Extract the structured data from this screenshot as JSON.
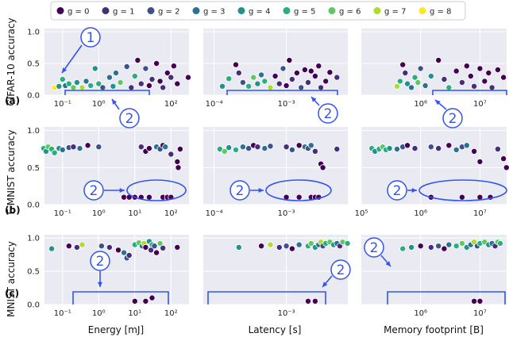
{
  "legend": {
    "entries": [
      {
        "label": "g = 0",
        "color": "#440154"
      },
      {
        "label": "g = 1",
        "color": "#472d7b"
      },
      {
        "label": "g = 2",
        "color": "#3b528b"
      },
      {
        "label": "g = 3",
        "color": "#2c728e"
      },
      {
        "label": "g = 4",
        "color": "#21918c"
      },
      {
        "label": "g = 5",
        "color": "#28ae80"
      },
      {
        "label": "g = 6",
        "color": "#5ec962"
      },
      {
        "label": "g = 7",
        "color": "#addc30"
      },
      {
        "label": "g = 8",
        "color": "#fde725"
      }
    ]
  },
  "rows": [
    {
      "ylabel": "CIFAR-10 accuracy",
      "tag": "(a)",
      "yticks": [
        "1.0",
        "0.5",
        "0.0"
      ]
    },
    {
      "ylabel": "F-MNIST accuracy",
      "tag": "(b)",
      "yticks": [
        "1.0",
        "0.5",
        "0.0"
      ]
    },
    {
      "ylabel": "MNIST accuracy",
      "tag": "(c)",
      "yticks": [
        "1.0",
        "0.5",
        "0.0"
      ]
    }
  ],
  "columns": [
    {
      "xlabel": "Energy [mJ]"
    },
    {
      "xlabel": "Latency [s]"
    },
    {
      "xlabel": "Memory footprint [B]"
    }
  ],
  "xticks": [
    [
      [
        "10⁻¹",
        "10⁰",
        "10²"
      ],
      [
        "10⁻¹",
        "10⁰",
        "10²"
      ],
      [
        "10⁻¹",
        "10⁰",
        "10¹",
        "10²"
      ],
      [
        "10⁻¹",
        "10⁰",
        "10¹",
        "10²"
      ]
    ],
    [
      [
        "10⁻⁴",
        "10⁻³"
      ],
      [
        "10⁻⁴",
        "10⁻³"
      ],
      [
        "10⁻³"
      ]
    ],
    [
      [
        "10⁶",
        "10⁷"
      ],
      [
        "10⁵",
        "10⁶",
        "10⁷"
      ],
      [
        "10⁶",
        "10⁷"
      ]
    ]
  ],
  "callouts": [
    "1",
    "2",
    "2",
    "2",
    "2",
    "2",
    "2",
    "2",
    "2",
    "2"
  ],
  "chart_data": [
    {
      "type": "scatter",
      "row": "CIFAR-10",
      "col": "Energy",
      "ylim": [
        0,
        1
      ],
      "points": [
        [
          0.06,
          0.12,
          8
        ],
        [
          0.08,
          0.14,
          4
        ],
        [
          0.1,
          0.25,
          5
        ],
        [
          0.12,
          0.15,
          3
        ],
        [
          0.15,
          0.18,
          5
        ],
        [
          0.2,
          0.12,
          6
        ],
        [
          0.25,
          0.2,
          4
        ],
        [
          0.35,
          0.12,
          7
        ],
        [
          0.45,
          0.22,
          3
        ],
        [
          0.6,
          0.15,
          5
        ],
        [
          0.8,
          0.42,
          4
        ],
        [
          1.0,
          0.18,
          5
        ],
        [
          1.3,
          0.12,
          2
        ],
        [
          2,
          0.28,
          3
        ],
        [
          2.5,
          0.14,
          4
        ],
        [
          3,
          0.35,
          3
        ],
        [
          4,
          0.2,
          6
        ],
        [
          6,
          0.45,
          2
        ],
        [
          8,
          0.12,
          1
        ],
        [
          10,
          0.3,
          5
        ],
        [
          12,
          0.55,
          0
        ],
        [
          15,
          0.18,
          1
        ],
        [
          20,
          0.42,
          2
        ],
        [
          25,
          0.15,
          0
        ],
        [
          30,
          0.25,
          1
        ],
        [
          40,
          0.5,
          0
        ],
        [
          50,
          0.22,
          0
        ],
        [
          60,
          0.12,
          1
        ],
        [
          80,
          0.35,
          0
        ],
        [
          100,
          0.28,
          1
        ],
        [
          120,
          0.46,
          0
        ],
        [
          150,
          0.18,
          0
        ],
        [
          300,
          0.28,
          0
        ]
      ]
    },
    {
      "type": "scatter",
      "row": "CIFAR-10",
      "col": "Latency",
      "ylim": [
        0,
        1
      ],
      "points": [
        [
          0.00013,
          0.14,
          4
        ],
        [
          0.00016,
          0.26,
          5
        ],
        [
          0.0002,
          0.48,
          0
        ],
        [
          0.00022,
          0.35,
          1
        ],
        [
          0.00025,
          0.2,
          2
        ],
        [
          0.0003,
          0.14,
          5
        ],
        [
          0.00035,
          0.28,
          6
        ],
        [
          0.0004,
          0.18,
          4
        ],
        [
          0.00045,
          0.32,
          3
        ],
        [
          0.0005,
          0.22,
          5
        ],
        [
          0.0006,
          0.12,
          7
        ],
        [
          0.0007,
          0.3,
          0
        ],
        [
          0.0008,
          0.18,
          1
        ],
        [
          0.0009,
          0.42,
          2
        ],
        [
          0.001,
          0.15,
          0
        ],
        [
          0.0011,
          0.55,
          0
        ],
        [
          0.0012,
          0.25,
          1
        ],
        [
          0.0014,
          0.35,
          0
        ],
        [
          0.0016,
          0.12,
          2
        ],
        [
          0.0018,
          0.4,
          0
        ],
        [
          0.002,
          0.2,
          1
        ],
        [
          0.0022,
          0.38,
          0
        ],
        [
          0.0025,
          0.3,
          0
        ],
        [
          0.0028,
          0.46,
          0
        ],
        [
          0.003,
          0.12,
          1
        ],
        [
          0.0035,
          0.22,
          0
        ],
        [
          0.004,
          0.36,
          0
        ],
        [
          0.005,
          0.28,
          1
        ]
      ]
    },
    {
      "type": "scatter",
      "row": "CIFAR-10",
      "col": "Memory",
      "ylim": [
        0,
        1
      ],
      "points": [
        [
          400000,
          0.14,
          7
        ],
        [
          450000,
          0.22,
          5
        ],
        [
          500000,
          0.48,
          0
        ],
        [
          550000,
          0.35,
          1
        ],
        [
          600000,
          0.18,
          4
        ],
        [
          700000,
          0.12,
          3
        ],
        [
          800000,
          0.28,
          5
        ],
        [
          900000,
          0.2,
          6
        ],
        [
          1000000,
          0.42,
          2
        ],
        [
          1200000,
          0.15,
          3
        ],
        [
          1500000,
          0.3,
          4
        ],
        [
          2000000,
          0.55,
          0
        ],
        [
          2500000,
          0.25,
          1
        ],
        [
          3000000,
          0.12,
          5
        ],
        [
          4000000,
          0.38,
          0
        ],
        [
          5000000,
          0.2,
          1
        ],
        [
          6000000,
          0.46,
          0
        ],
        [
          7000000,
          0.3,
          0
        ],
        [
          8000000,
          0.14,
          1
        ],
        [
          10000000,
          0.42,
          0
        ],
        [
          12000000,
          0.22,
          0
        ],
        [
          14000000,
          0.35,
          0
        ],
        [
          16000000,
          0.12,
          1
        ],
        [
          20000000,
          0.4,
          0
        ],
        [
          25000000,
          0.28,
          0
        ]
      ]
    },
    {
      "type": "scatter",
      "row": "F-MNIST",
      "col": "Energy",
      "ylim": [
        0,
        1
      ],
      "points": [
        [
          0.03,
          0.76,
          5
        ],
        [
          0.035,
          0.72,
          4
        ],
        [
          0.04,
          0.78,
          6
        ],
        [
          0.05,
          0.75,
          5
        ],
        [
          0.06,
          0.7,
          5
        ],
        [
          0.08,
          0.76,
          4
        ],
        [
          0.1,
          0.74,
          3
        ],
        [
          0.15,
          0.77,
          2
        ],
        [
          0.2,
          0.78,
          1
        ],
        [
          0.3,
          0.76,
          3
        ],
        [
          0.5,
          0.8,
          0
        ],
        [
          1.0,
          0.78,
          2
        ],
        [
          15,
          0.78,
          1
        ],
        [
          20,
          0.72,
          0
        ],
        [
          25,
          0.76,
          0
        ],
        [
          40,
          0.78,
          3
        ],
        [
          50,
          0.75,
          2
        ],
        [
          60,
          0.8,
          0
        ],
        [
          70,
          0.78,
          3
        ],
        [
          100,
          0.68,
          1
        ],
        [
          150,
          0.58,
          0
        ],
        [
          160,
          0.5,
          0
        ],
        [
          180,
          0.75,
          0
        ],
        [
          5,
          0.1,
          0
        ],
        [
          7,
          0.1,
          0
        ],
        [
          10,
          0.1,
          0
        ],
        [
          15,
          0.1,
          0
        ],
        [
          25,
          0.1,
          0
        ],
        [
          60,
          0.1,
          0
        ],
        [
          80,
          0.1,
          0
        ],
        [
          100,
          0.1,
          0
        ]
      ]
    },
    {
      "type": "scatter",
      "row": "F-MNIST",
      "col": "Latency",
      "ylim": [
        0,
        1
      ],
      "points": [
        [
          0.00012,
          0.75,
          5
        ],
        [
          0.00014,
          0.72,
          6
        ],
        [
          0.00016,
          0.77,
          4
        ],
        [
          0.0002,
          0.74,
          5
        ],
        [
          0.00025,
          0.78,
          3
        ],
        [
          0.0003,
          0.76,
          2
        ],
        [
          0.00035,
          0.8,
          0
        ],
        [
          0.0004,
          0.78,
          1
        ],
        [
          0.0005,
          0.76,
          3
        ],
        [
          0.0006,
          0.79,
          2
        ],
        [
          0.001,
          0.78,
          1
        ],
        [
          0.0012,
          0.74,
          2
        ],
        [
          0.0015,
          0.8,
          0
        ],
        [
          0.0018,
          0.78,
          3
        ],
        [
          0.002,
          0.76,
          2
        ],
        [
          0.0022,
          0.8,
          3
        ],
        [
          0.0025,
          0.72,
          1
        ],
        [
          0.003,
          0.55,
          0
        ],
        [
          0.0032,
          0.5,
          0
        ],
        [
          0.005,
          0.75,
          1
        ],
        [
          0.001,
          0.1,
          0
        ],
        [
          0.0015,
          0.1,
          0
        ],
        [
          0.0022,
          0.1,
          0
        ],
        [
          0.0025,
          0.1,
          0
        ],
        [
          0.0028,
          0.1,
          0
        ]
      ]
    },
    {
      "type": "scatter",
      "row": "F-MNIST",
      "col": "Memory",
      "ylim": [
        0,
        1
      ],
      "points": [
        [
          150000,
          0.76,
          5
        ],
        [
          170000,
          0.72,
          4
        ],
        [
          200000,
          0.75,
          5
        ],
        [
          230000,
          0.78,
          6
        ],
        [
          260000,
          0.74,
          5
        ],
        [
          300000,
          0.76,
          4
        ],
        [
          400000,
          0.75,
          3
        ],
        [
          500000,
          0.78,
          2
        ],
        [
          600000,
          0.8,
          0
        ],
        [
          800000,
          0.76,
          1
        ],
        [
          1500000,
          0.78,
          2
        ],
        [
          2000000,
          0.76,
          1
        ],
        [
          3000000,
          0.8,
          0
        ],
        [
          4000000,
          0.74,
          3
        ],
        [
          5000000,
          0.78,
          2
        ],
        [
          6000000,
          0.8,
          3
        ],
        [
          8000000,
          0.72,
          0
        ],
        [
          10000000,
          0.58,
          0
        ],
        [
          20000000,
          0.75,
          1
        ],
        [
          25000000,
          0.62,
          0
        ],
        [
          28000000,
          0.5,
          0
        ],
        [
          1500000,
          0.1,
          0
        ],
        [
          5000000,
          0.1,
          0
        ],
        [
          10000000,
          0.1,
          0
        ],
        [
          15000000,
          0.1,
          0
        ]
      ]
    },
    {
      "type": "scatter",
      "row": "MNIST",
      "col": "Energy",
      "ylim": [
        0,
        1
      ],
      "points": [
        [
          0.05,
          0.84,
          4
        ],
        [
          0.15,
          0.88,
          0
        ],
        [
          0.25,
          0.86,
          1
        ],
        [
          0.35,
          0.9,
          7
        ],
        [
          1.2,
          0.88,
          2
        ],
        [
          2,
          0.86,
          1
        ],
        [
          3.5,
          0.82,
          0
        ],
        [
          5,
          0.78,
          3
        ],
        [
          6,
          0.7,
          2
        ],
        [
          7,
          0.74,
          1
        ],
        [
          10,
          0.9,
          5
        ],
        [
          13,
          0.93,
          6
        ],
        [
          16,
          0.88,
          3
        ],
        [
          18,
          0.92,
          7
        ],
        [
          20,
          0.86,
          0
        ],
        [
          25,
          0.95,
          4
        ],
        [
          28,
          0.82,
          1
        ],
        [
          30,
          0.9,
          5
        ],
        [
          35,
          0.88,
          2
        ],
        [
          40,
          0.78,
          0
        ],
        [
          50,
          0.92,
          6
        ],
        [
          60,
          0.85,
          1
        ],
        [
          150,
          0.86,
          0
        ],
        [
          10,
          0.05,
          0
        ],
        [
          20,
          0.05,
          0
        ],
        [
          30,
          0.1,
          0
        ]
      ]
    },
    {
      "type": "scatter",
      "row": "MNIST",
      "col": "Latency",
      "ylim": [
        0,
        1
      ],
      "points": [
        [
          0.00022,
          0.86,
          4
        ],
        [
          0.00045,
          0.88,
          0
        ],
        [
          0.0006,
          0.9,
          7
        ],
        [
          0.0008,
          0.86,
          1
        ],
        [
          0.001,
          0.88,
          2
        ],
        [
          0.0012,
          0.84,
          0
        ],
        [
          0.0015,
          0.9,
          3
        ],
        [
          0.002,
          0.88,
          5
        ],
        [
          0.0022,
          0.92,
          6
        ],
        [
          0.0025,
          0.86,
          4
        ],
        [
          0.0028,
          0.9,
          3
        ],
        [
          0.003,
          0.94,
          7
        ],
        [
          0.0032,
          0.88,
          2
        ],
        [
          0.0035,
          0.92,
          5
        ],
        [
          0.004,
          0.94,
          6
        ],
        [
          0.0045,
          0.9,
          4
        ],
        [
          0.005,
          0.92,
          3
        ],
        [
          0.0055,
          0.88,
          1
        ],
        [
          0.006,
          0.94,
          6
        ],
        [
          0.007,
          0.92,
          5
        ],
        [
          0.002,
          0.05,
          0
        ],
        [
          0.0025,
          0.05,
          0
        ]
      ]
    },
    {
      "type": "scatter",
      "row": "MNIST",
      "col": "Memory",
      "ylim": [
        0,
        1
      ],
      "points": [
        [
          500000,
          0.84,
          5
        ],
        [
          700000,
          0.86,
          4
        ],
        [
          1000000,
          0.88,
          0
        ],
        [
          1500000,
          0.86,
          1
        ],
        [
          2000000,
          0.88,
          2
        ],
        [
          2500000,
          0.84,
          0
        ],
        [
          3000000,
          0.9,
          3
        ],
        [
          4000000,
          0.88,
          5
        ],
        [
          5000000,
          0.92,
          6
        ],
        [
          6000000,
          0.86,
          4
        ],
        [
          7000000,
          0.9,
          3
        ],
        [
          8000000,
          0.94,
          7
        ],
        [
          9000000,
          0.88,
          2
        ],
        [
          10000000,
          0.92,
          5
        ],
        [
          12000000,
          0.94,
          6
        ],
        [
          14000000,
          0.9,
          4
        ],
        [
          16000000,
          0.92,
          3
        ],
        [
          18000000,
          0.88,
          1
        ],
        [
          20000000,
          0.94,
          6
        ],
        [
          22000000,
          0.92,
          5
        ],
        [
          8000000,
          0.05,
          0
        ],
        [
          10000000,
          0.05,
          0
        ]
      ]
    }
  ]
}
